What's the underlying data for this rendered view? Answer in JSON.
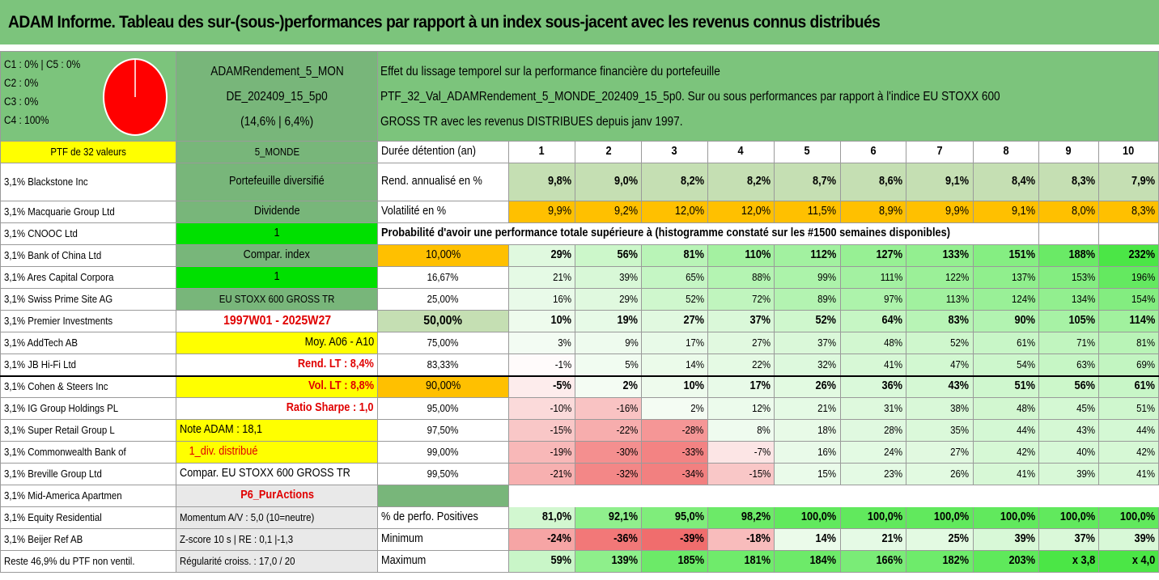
{
  "title": "ADAM Informe. Tableau des sur-(sous-)performances par rapport à un index sous-jacent avec les revenus connus distribués",
  "header": {
    "legend": [
      "C1 : 0% | C5 : 0%",
      "C2 : 0%",
      "C3 : 0%",
      "C4 : 100%"
    ],
    "pie_color": "#ff0000",
    "portfolio_name_1": "ADAMRendement_5_MON",
    "portfolio_name_2": "DE_202409_15_5p0",
    "portfolio_stats": "(14,6% | 6,4%)",
    "desc_1": "Effet du lissage temporel sur la performance financière du portefeuille",
    "desc_2": "PTF_32_Val_ADAMRendement_5_MONDE_202409_15_5p0. Sur ou sous performances par rapport à l'indice EU STOXX 600",
    "desc_3": "GROSS TR avec les revenus DISTRIBUES depuis janv 1997."
  },
  "left_col": {
    "ptf": "PTF de 32 valeurs",
    "holdings": [
      "3,1% Blackstone Inc",
      "3,1% Macquarie Group Ltd",
      "3,1% CNOOC Ltd",
      "3,1% Bank of China Ltd",
      "3,1% Ares Capital Corpora",
      "3,1% Swiss Prime Site AG",
      "3,1% Premier Investments",
      "3,1% AddTech AB",
      "3,1% JB Hi-Fi Ltd",
      "3,1% Cohen & Steers Inc",
      "3,1% IG Group Holdings PL",
      "3,1% Super Retail Group L",
      "3,1% Commonwealth Bank of",
      "3,1% Breville Group Ltd",
      "3,1% Mid-America Apartmen",
      "3,1% Equity Residential",
      "3,1% Beijer Ref AB",
      "Reste 46,9% du PTF non ventil."
    ]
  },
  "second_col": [
    "5_MONDE",
    "Portefeuille diversifié",
    "Dividende",
    "1",
    "Compar. index",
    "1",
    "EU STOXX 600 GROSS TR",
    "1997W01 - 2025W27",
    "Moy. A06 - A10",
    "Rend. LT : 8,4%",
    "Vol. LT : 8,8%",
    "Ratio Sharpe : 1,0",
    "Note ADAM : 18,1",
    "1_div. distribué",
    "Compar. EU STOXX 600 GROSS TR",
    "P6_PurActions",
    "Momentum A/V : 5,0 (10=neutre)",
    "Z-score 10 s | RE : 0,1 |-1,3",
    "Régularité croiss. : 17,0 / 20"
  ],
  "table": {
    "duration_label": "Durée détention (an)",
    "years": [
      "1",
      "2",
      "3",
      "4",
      "5",
      "6",
      "7",
      "8",
      "9",
      "10"
    ],
    "rend_label": "Rend. annualisé en %",
    "rend": [
      "9,8%",
      "9,0%",
      "8,2%",
      "8,2%",
      "8,7%",
      "8,6%",
      "9,1%",
      "8,4%",
      "8,3%",
      "7,9%"
    ],
    "vol_label": "Volatilité en %",
    "vol": [
      "9,9%",
      "9,2%",
      "12,0%",
      "12,0%",
      "11,5%",
      "8,9%",
      "9,9%",
      "9,1%",
      "8,0%",
      "8,3%"
    ],
    "prob_title": "Probabilité d'avoir une performance totale supérieure à (histogramme constaté sur les #1500 semaines disponibles)",
    "quantiles": [
      {
        "p": "10,00%",
        "v": [
          "29%",
          "56%",
          "81%",
          "110%",
          "112%",
          "127%",
          "133%",
          "151%",
          "188%",
          "232%"
        ]
      },
      {
        "p": "16,67%",
        "v": [
          "21%",
          "39%",
          "65%",
          "88%",
          "99%",
          "111%",
          "122%",
          "137%",
          "153%",
          "196%"
        ]
      },
      {
        "p": "25,00%",
        "v": [
          "16%",
          "29%",
          "52%",
          "72%",
          "89%",
          "97%",
          "113%",
          "124%",
          "134%",
          "154%"
        ]
      },
      {
        "p": "50,00%",
        "v": [
          "10%",
          "19%",
          "27%",
          "37%",
          "52%",
          "64%",
          "83%",
          "90%",
          "105%",
          "114%"
        ]
      },
      {
        "p": "75,00%",
        "v": [
          "3%",
          "9%",
          "17%",
          "27%",
          "37%",
          "48%",
          "52%",
          "61%",
          "71%",
          "81%"
        ]
      },
      {
        "p": "83,33%",
        "v": [
          "-1%",
          "5%",
          "14%",
          "22%",
          "32%",
          "41%",
          "47%",
          "54%",
          "63%",
          "69%"
        ]
      },
      {
        "p": "90,00%",
        "v": [
          "-5%",
          "2%",
          "10%",
          "17%",
          "26%",
          "36%",
          "43%",
          "51%",
          "56%",
          "61%"
        ]
      },
      {
        "p": "95,00%",
        "v": [
          "-10%",
          "-16%",
          "2%",
          "12%",
          "21%",
          "31%",
          "38%",
          "48%",
          "45%",
          "51%"
        ]
      },
      {
        "p": "97,50%",
        "v": [
          "-15%",
          "-22%",
          "-28%",
          "8%",
          "18%",
          "28%",
          "35%",
          "44%",
          "43%",
          "44%"
        ]
      },
      {
        "p": "99,00%",
        "v": [
          "-19%",
          "-30%",
          "-33%",
          "-7%",
          "16%",
          "24%",
          "27%",
          "42%",
          "40%",
          "42%"
        ]
      },
      {
        "p": "99,50%",
        "v": [
          "-21%",
          "-32%",
          "-34%",
          "-15%",
          "15%",
          "23%",
          "26%",
          "41%",
          "39%",
          "41%"
        ]
      }
    ],
    "pos_label": "% de perfo. Positives",
    "pos": [
      "81,0%",
      "92,1%",
      "95,0%",
      "98,2%",
      "100,0%",
      "100,0%",
      "100,0%",
      "100,0%",
      "100,0%",
      "100,0%"
    ],
    "min_label": "Minimum",
    "min": [
      "-24%",
      "-36%",
      "-39%",
      "-18%",
      "14%",
      "21%",
      "25%",
      "39%",
      "37%",
      "39%"
    ],
    "max_label": "Maximum",
    "max": [
      "59%",
      "139%",
      "185%",
      "181%",
      "184%",
      "166%",
      "182%",
      "203%",
      "x 3,8",
      "x 4,0"
    ]
  },
  "colors": {
    "header_green": "#7cc47c",
    "highlight_yellow": "#ffff00",
    "highlight_orange": "#ffc000",
    "positive_green": "#00e000",
    "negative_red": "#f06060"
  }
}
